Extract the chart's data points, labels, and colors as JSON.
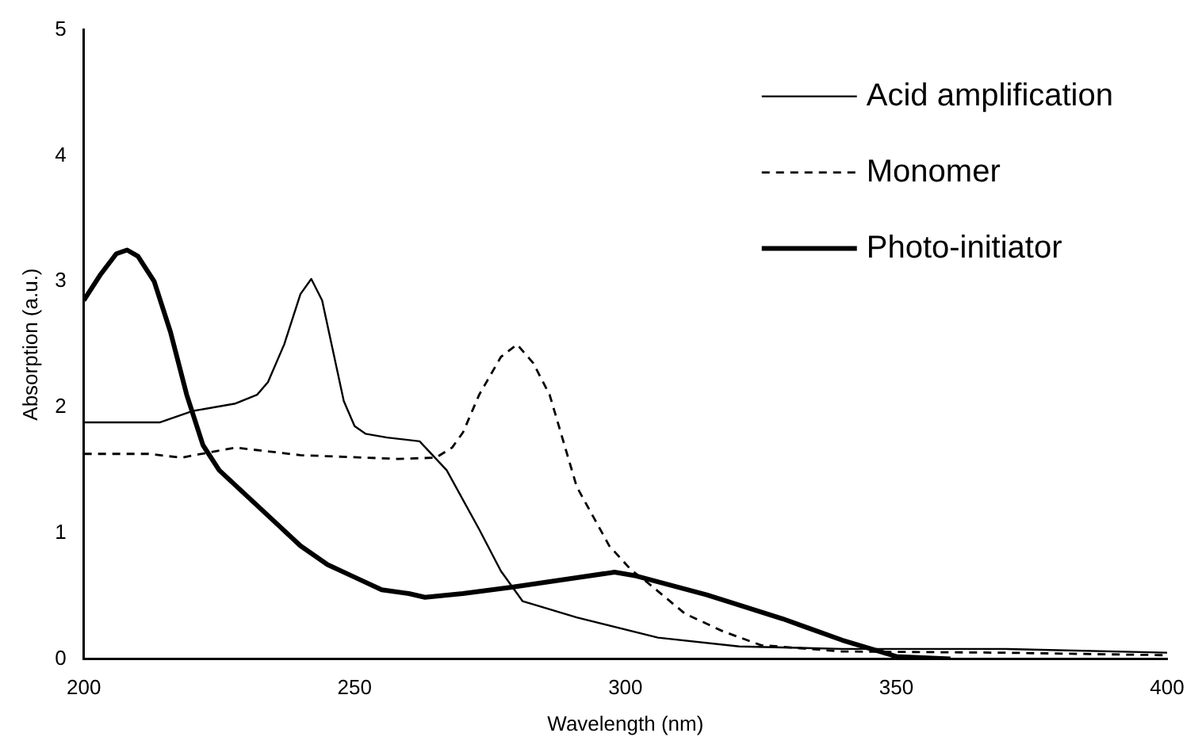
{
  "chart_data": {
    "type": "line",
    "xlabel": "Wavelength (nm)",
    "ylabel": "Absorption (a.u.)",
    "xlim": [
      200,
      400
    ],
    "xticks": [
      200,
      250,
      300,
      350,
      400
    ],
    "ylim": [
      0,
      5
    ],
    "yticks": [
      0,
      1,
      2,
      3,
      4,
      5
    ],
    "grid": false,
    "legend": "top right",
    "marker": "none",
    "series": [
      {
        "name": "Acid amplification",
        "color": "#000000",
        "line_style": "solid",
        "x": [
          200,
          214,
          220,
          228,
          232,
          234,
          237,
          240,
          242,
          244,
          246,
          248,
          250,
          252,
          256,
          262,
          267,
          273,
          277,
          281,
          291,
          306,
          321,
          340,
          370,
          400
        ],
        "values": [
          1.88,
          1.88,
          1.97,
          2.03,
          2.1,
          2.2,
          2.5,
          2.9,
          3.02,
          2.85,
          2.45,
          2.05,
          1.85,
          1.79,
          1.76,
          1.73,
          1.5,
          1.03,
          0.7,
          0.46,
          0.33,
          0.17,
          0.1,
          0.08,
          0.08,
          0.05
        ]
      },
      {
        "name": "Monomer",
        "color": "#000000",
        "line_style": "dashed",
        "x": [
          200,
          212,
          218,
          228,
          240,
          258,
          265,
          268,
          270,
          273,
          277,
          280,
          283,
          286,
          291,
          297,
          301,
          304,
          311,
          318,
          325,
          340,
          370,
          400
        ],
        "values": [
          1.63,
          1.63,
          1.6,
          1.68,
          1.62,
          1.59,
          1.6,
          1.68,
          1.8,
          2.1,
          2.4,
          2.5,
          2.35,
          2.1,
          1.37,
          0.9,
          0.71,
          0.61,
          0.36,
          0.22,
          0.11,
          0.06,
          0.05,
          0.03
        ]
      },
      {
        "name": "Photo-initiator",
        "color": "#000000",
        "line_style": "solid",
        "x": [
          200,
          203,
          206,
          208,
          210,
          213,
          216,
          219,
          222,
          225,
          230,
          235,
          240,
          245,
          250,
          255,
          260,
          263,
          270,
          279,
          290,
          298,
          302,
          315,
          329,
          340,
          350,
          360
        ],
        "values": [
          2.85,
          3.05,
          3.22,
          3.25,
          3.2,
          3.0,
          2.6,
          2.1,
          1.7,
          1.5,
          1.3,
          1.1,
          0.9,
          0.75,
          0.65,
          0.55,
          0.52,
          0.49,
          0.52,
          0.57,
          0.64,
          0.69,
          0.66,
          0.51,
          0.32,
          0.15,
          0.02,
          0
        ]
      }
    ]
  }
}
